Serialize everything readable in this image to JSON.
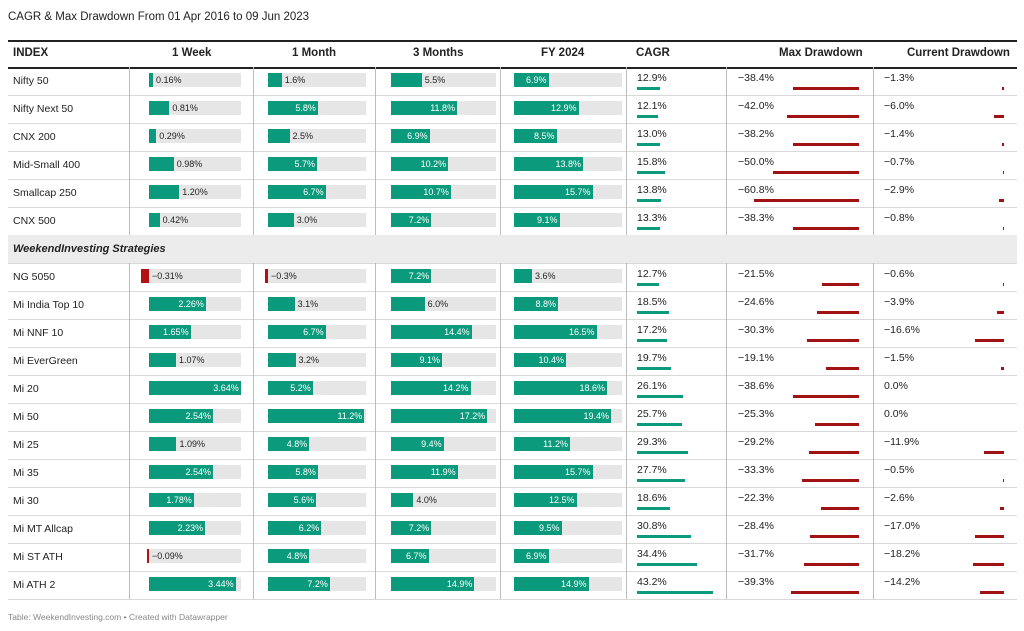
{
  "title": "CAGR & Max Drawdown From 01 Apr 2016 to 09 Jun 2023",
  "footer": "Table: WeekendInvesting.com • Created with Datawrapper",
  "colors": {
    "positive": "#0c9a7c",
    "negative": "#b31214",
    "drawdown": "#a01214",
    "group_bg": "#ececec"
  },
  "columns": [
    "INDEX",
    "1 Week",
    "1 Month",
    "3 Months",
    "FY 2024",
    "CAGR",
    "Max Drawdown",
    "Current Drawdown"
  ],
  "group_label": "WeekendInvesting Strategies",
  "rows": [
    {
      "name": "Nifty 50",
      "w1": 0.16,
      "w1_label": "0.16%",
      "m1": 1.6,
      "m1_label": "1.6%",
      "m3": 5.5,
      "m3_label": "5.5%",
      "fy": 6.9,
      "fy_label": "6.9%",
      "cagr": 12.9,
      "cagr_label": "12.9%",
      "maxdd": -38.4,
      "maxdd_label": "−38.4%",
      "curdd": -1.3,
      "curdd_label": "−1.3%"
    },
    {
      "name": "Nifty Next 50",
      "w1": 0.81,
      "w1_label": "0.81%",
      "m1": 5.8,
      "m1_label": "5.8%",
      "m3": 11.8,
      "m3_label": "11.8%",
      "fy": 12.9,
      "fy_label": "12.9%",
      "cagr": 12.1,
      "cagr_label": "12.1%",
      "maxdd": -42.0,
      "maxdd_label": "−42.0%",
      "curdd": -6.0,
      "curdd_label": "−6.0%"
    },
    {
      "name": "CNX 200",
      "w1": 0.29,
      "w1_label": "0.29%",
      "m1": 2.5,
      "m1_label": "2.5%",
      "m3": 6.9,
      "m3_label": "6.9%",
      "fy": 8.5,
      "fy_label": "8.5%",
      "cagr": 13.0,
      "cagr_label": "13.0%",
      "maxdd": -38.2,
      "maxdd_label": "−38.2%",
      "curdd": -1.4,
      "curdd_label": "−1.4%"
    },
    {
      "name": "Mid-Small 400",
      "w1": 0.98,
      "w1_label": "0.98%",
      "m1": 5.7,
      "m1_label": "5.7%",
      "m3": 10.2,
      "m3_label": "10.2%",
      "fy": 13.8,
      "fy_label": "13.8%",
      "cagr": 15.8,
      "cagr_label": "15.8%",
      "maxdd": -50.0,
      "maxdd_label": "−50.0%",
      "curdd": -0.7,
      "curdd_label": "−0.7%"
    },
    {
      "name": "Smallcap 250",
      "w1": 1.2,
      "w1_label": "1.20%",
      "m1": 6.7,
      "m1_label": "6.7%",
      "m3": 10.7,
      "m3_label": "10.7%",
      "fy": 15.7,
      "fy_label": "15.7%",
      "cagr": 13.8,
      "cagr_label": "13.8%",
      "maxdd": -60.8,
      "maxdd_label": "−60.8%",
      "curdd": -2.9,
      "curdd_label": "−2.9%"
    },
    {
      "name": "CNX 500",
      "w1": 0.42,
      "w1_label": "0.42%",
      "m1": 3.0,
      "m1_label": "3.0%",
      "m3": 7.2,
      "m3_label": "7.2%",
      "fy": 9.1,
      "fy_label": "9.1%",
      "cagr": 13.3,
      "cagr_label": "13.3%",
      "maxdd": -38.3,
      "maxdd_label": "−38.3%",
      "curdd": -0.8,
      "curdd_label": "−0.8%"
    },
    {
      "group": true
    },
    {
      "name": "NG 5050",
      "w1": -0.31,
      "w1_label": "−0.31%",
      "m1": -0.3,
      "m1_label": "−0.3%",
      "m3": 7.2,
      "m3_label": "7.2%",
      "fy": 3.6,
      "fy_label": "3.6%",
      "cagr": 12.7,
      "cagr_label": "12.7%",
      "maxdd": -21.5,
      "maxdd_label": "−21.5%",
      "curdd": -0.6,
      "curdd_label": "−0.6%"
    },
    {
      "name": "Mi India Top 10",
      "w1": 2.26,
      "w1_label": "2.26%",
      "m1": 3.1,
      "m1_label": "3.1%",
      "m3": 6.0,
      "m3_label": "6.0%",
      "fy": 8.8,
      "fy_label": "8.8%",
      "cagr": 18.5,
      "cagr_label": "18.5%",
      "maxdd": -24.6,
      "maxdd_label": "−24.6%",
      "curdd": -3.9,
      "curdd_label": "−3.9%"
    },
    {
      "name": "Mi NNF 10",
      "w1": 1.65,
      "w1_label": "1.65%",
      "m1": 6.7,
      "m1_label": "6.7%",
      "m3": 14.4,
      "m3_label": "14.4%",
      "fy": 16.5,
      "fy_label": "16.5%",
      "cagr": 17.2,
      "cagr_label": "17.2%",
      "maxdd": -30.3,
      "maxdd_label": "−30.3%",
      "curdd": -16.6,
      "curdd_label": "−16.6%"
    },
    {
      "name": "Mi EverGreen",
      "w1": 1.07,
      "w1_label": "1.07%",
      "m1": 3.2,
      "m1_label": "3.2%",
      "m3": 9.1,
      "m3_label": "9.1%",
      "fy": 10.4,
      "fy_label": "10.4%",
      "cagr": 19.7,
      "cagr_label": "19.7%",
      "maxdd": -19.1,
      "maxdd_label": "−19.1%",
      "curdd": -1.5,
      "curdd_label": "−1.5%"
    },
    {
      "name": "Mi 20",
      "w1": 3.64,
      "w1_label": "3.64%",
      "m1": 5.2,
      "m1_label": "5.2%",
      "m3": 14.2,
      "m3_label": "14.2%",
      "fy": 18.6,
      "fy_label": "18.6%",
      "cagr": 26.1,
      "cagr_label": "26.1%",
      "maxdd": -38.6,
      "maxdd_label": "−38.6%",
      "curdd": 0.0,
      "curdd_label": "0.0%"
    },
    {
      "name": "Mi 50",
      "w1": 2.54,
      "w1_label": "2.54%",
      "m1": 11.2,
      "m1_label": "11.2%",
      "m3": 17.2,
      "m3_label": "17.2%",
      "fy": 19.4,
      "fy_label": "19.4%",
      "cagr": 25.7,
      "cagr_label": "25.7%",
      "maxdd": -25.3,
      "maxdd_label": "−25.3%",
      "curdd": 0.0,
      "curdd_label": "0.0%"
    },
    {
      "name": "Mi 25",
      "w1": 1.09,
      "w1_label": "1.09%",
      "m1": 4.8,
      "m1_label": "4.8%",
      "m3": 9.4,
      "m3_label": "9.4%",
      "fy": 11.2,
      "fy_label": "11.2%",
      "cagr": 29.3,
      "cagr_label": "29.3%",
      "maxdd": -29.2,
      "maxdd_label": "−29.2%",
      "curdd": -11.9,
      "curdd_label": "−11.9%"
    },
    {
      "name": "Mi 35",
      "w1": 2.54,
      "w1_label": "2.54%",
      "m1": 5.8,
      "m1_label": "5.8%",
      "m3": 11.9,
      "m3_label": "11.9%",
      "fy": 15.7,
      "fy_label": "15.7%",
      "cagr": 27.7,
      "cagr_label": "27.7%",
      "maxdd": -33.3,
      "maxdd_label": "−33.3%",
      "curdd": -0.5,
      "curdd_label": "−0.5%"
    },
    {
      "name": "Mi 30",
      "w1": 1.78,
      "w1_label": "1.78%",
      "m1": 5.6,
      "m1_label": "5.6%",
      "m3": 4.0,
      "m3_label": "4.0%",
      "fy": 12.5,
      "fy_label": "12.5%",
      "cagr": 18.6,
      "cagr_label": "18.6%",
      "maxdd": -22.3,
      "maxdd_label": "−22.3%",
      "curdd": -2.6,
      "curdd_label": "−2.6%"
    },
    {
      "name": "Mi MT Allcap",
      "w1": 2.23,
      "w1_label": "2.23%",
      "m1": 6.2,
      "m1_label": "6.2%",
      "m3": 7.2,
      "m3_label": "7.2%",
      "fy": 9.5,
      "fy_label": "9.5%",
      "cagr": 30.8,
      "cagr_label": "30.8%",
      "maxdd": -28.4,
      "maxdd_label": "−28.4%",
      "curdd": -17.0,
      "curdd_label": "−17.0%"
    },
    {
      "name": "Mi ST ATH",
      "w1": -0.09,
      "w1_label": "−0.09%",
      "m1": 4.8,
      "m1_label": "4.8%",
      "m3": 6.7,
      "m3_label": "6.7%",
      "fy": 6.9,
      "fy_label": "6.9%",
      "cagr": 34.4,
      "cagr_label": "34.4%",
      "maxdd": -31.7,
      "maxdd_label": "−31.7%",
      "curdd": -18.2,
      "curdd_label": "−18.2%"
    },
    {
      "name": "Mi ATH 2",
      "w1": 3.44,
      "w1_label": "3.44%",
      "m1": 7.2,
      "m1_label": "7.2%",
      "m3": 14.9,
      "m3_label": "14.9%",
      "fy": 14.9,
      "fy_label": "14.9%",
      "cagr": 43.2,
      "cagr_label": "43.2%",
      "maxdd": -39.3,
      "maxdd_label": "−39.3%",
      "curdd": -14.2,
      "curdd_label": "−14.2%"
    }
  ]
}
